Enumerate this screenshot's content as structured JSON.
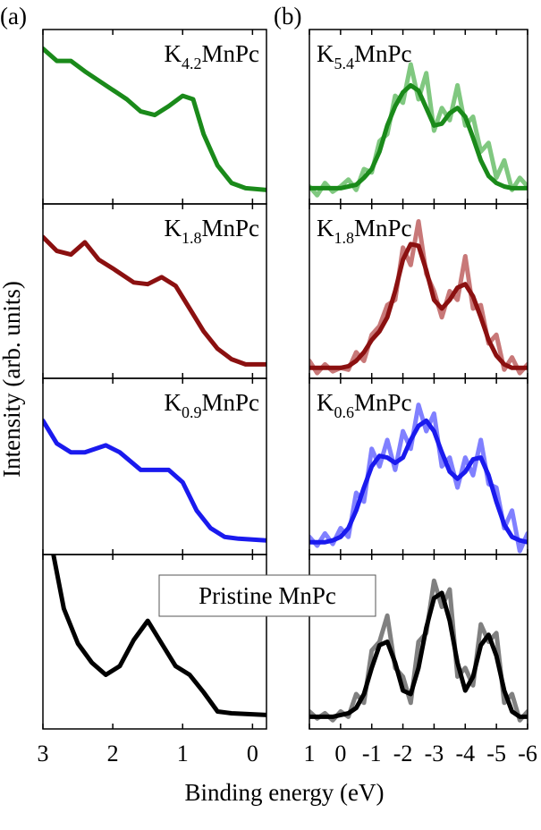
{
  "figure": {
    "panel_a": "(a)",
    "panel_b": "(b)",
    "y_label": "Intensity (arb. units)",
    "x_label": "Binding energy (eV)",
    "box_label": "Pristine MnPc"
  },
  "chart_data": [
    {
      "type": "line",
      "label": {
        "main": "K",
        "sub": "4.2",
        "rest": "MnPc"
      },
      "xlim": [
        3,
        -0.2
      ],
      "ylim": [
        0,
        1
      ],
      "xticks": [
        3,
        2,
        1,
        0
      ],
      "x": [
        3,
        2.8,
        2.6,
        2.4,
        2.1,
        1.8,
        1.6,
        1.4,
        1.2,
        1.0,
        0.85,
        0.7,
        0.5,
        0.3,
        0.1,
        -0.2
      ],
      "series": [
        {
          "color": "#1a8a1a",
          "values": [
            0.89,
            0.82,
            0.82,
            0.76,
            0.68,
            0.6,
            0.53,
            0.51,
            0.56,
            0.62,
            0.6,
            0.4,
            0.22,
            0.12,
            0.09,
            0.08
          ]
        }
      ]
    },
    {
      "type": "line",
      "label": {
        "main": "K",
        "sub": "1.8",
        "rest": "MnPc"
      },
      "xlim": [
        3,
        -0.2
      ],
      "ylim": [
        0,
        1
      ],
      "xticks": [
        3,
        2,
        1,
        0
      ],
      "x": [
        3,
        2.8,
        2.6,
        2.4,
        2.2,
        2.0,
        1.7,
        1.5,
        1.3,
        1.1,
        0.9,
        0.7,
        0.5,
        0.3,
        0.1,
        -0.2
      ],
      "series": [
        {
          "color": "#8b1010",
          "values": [
            0.81,
            0.73,
            0.71,
            0.78,
            0.68,
            0.63,
            0.55,
            0.54,
            0.58,
            0.53,
            0.4,
            0.27,
            0.17,
            0.11,
            0.08,
            0.08
          ]
        }
      ]
    },
    {
      "type": "line",
      "label": {
        "main": "K",
        "sub": "0.9",
        "rest": "MnPc"
      },
      "xlim": [
        3,
        -0.2
      ],
      "ylim": [
        0,
        1
      ],
      "xticks": [
        3,
        2,
        1,
        0
      ],
      "x": [
        3,
        2.8,
        2.6,
        2.4,
        2.1,
        1.9,
        1.6,
        1.4,
        1.2,
        1.0,
        0.8,
        0.6,
        0.4,
        0.2,
        -0.2
      ],
      "series": [
        {
          "color": "#1a1aee",
          "values": [
            0.76,
            0.63,
            0.58,
            0.58,
            0.62,
            0.58,
            0.48,
            0.48,
            0.48,
            0.41,
            0.25,
            0.15,
            0.1,
            0.09,
            0.08
          ]
        }
      ]
    },
    {
      "type": "line",
      "xlim": [
        3,
        -0.2
      ],
      "ylim": [
        0,
        1
      ],
      "xticks": [
        3,
        2,
        1,
        0
      ],
      "x": [
        2.85,
        2.7,
        2.5,
        2.3,
        2.1,
        1.9,
        1.7,
        1.5,
        1.3,
        1.1,
        0.9,
        0.7,
        0.5,
        0.3,
        -0.2
      ],
      "series": [
        {
          "color": "#000000",
          "values": [
            1.0,
            0.69,
            0.49,
            0.38,
            0.31,
            0.36,
            0.51,
            0.62,
            0.49,
            0.36,
            0.31,
            0.21,
            0.1,
            0.09,
            0.08
          ]
        }
      ]
    },
    {
      "type": "line",
      "label": {
        "main": "K",
        "sub": "5.4",
        "rest": "MnPc"
      },
      "xlim": [
        1,
        -6
      ],
      "ylim": [
        0,
        1
      ],
      "xticks": [
        1,
        0,
        -1,
        -2,
        -3,
        -4,
        -5,
        -6
      ],
      "x": [
        1,
        0.75,
        0.5,
        0.25,
        0,
        -0.25,
        -0.5,
        -0.75,
        -1,
        -1.25,
        -1.5,
        -1.75,
        -2,
        -2.25,
        -2.5,
        -2.75,
        -3,
        -3.25,
        -3.5,
        -3.75,
        -4,
        -4.25,
        -4.5,
        -4.75,
        -5,
        -5.25,
        -5.5,
        -5.75,
        -6
      ],
      "series": [
        {
          "color": "#80c880",
          "values": [
            0.1,
            0.05,
            0.12,
            0.07,
            0.1,
            0.14,
            0.08,
            0.2,
            0.18,
            0.36,
            0.4,
            0.62,
            0.58,
            0.8,
            0.6,
            0.75,
            0.42,
            0.55,
            0.48,
            0.68,
            0.45,
            0.5,
            0.3,
            0.35,
            0.15,
            0.25,
            0.08,
            0.15,
            0.1
          ]
        },
        {
          "color": "#1a8a1a",
          "values": [
            0.09,
            0.09,
            0.09,
            0.09,
            0.09,
            0.1,
            0.11,
            0.15,
            0.2,
            0.3,
            0.45,
            0.56,
            0.64,
            0.68,
            0.65,
            0.55,
            0.45,
            0.46,
            0.52,
            0.55,
            0.5,
            0.38,
            0.25,
            0.16,
            0.12,
            0.1,
            0.09,
            0.09,
            0.09
          ]
        }
      ]
    },
    {
      "type": "line",
      "label": {
        "main": "K",
        "sub": "1.8",
        "rest": "MnPc"
      },
      "xlim": [
        1,
        -6
      ],
      "ylim": [
        0,
        1
      ],
      "xticks": [
        1,
        0,
        -1,
        -2,
        -3,
        -4,
        -5,
        -6
      ],
      "x": [
        1,
        0.75,
        0.5,
        0.25,
        0,
        -0.25,
        -0.5,
        -0.75,
        -1,
        -1.25,
        -1.5,
        -1.75,
        -2,
        -2.25,
        -2.5,
        -2.75,
        -3,
        -3.25,
        -3.5,
        -3.75,
        -4,
        -4.25,
        -4.5,
        -4.75,
        -5,
        -5.25,
        -5.5,
        -5.75,
        -6
      ],
      "series": [
        {
          "color": "#c87878",
          "values": [
            0.1,
            0.03,
            0.08,
            0.04,
            0.06,
            0.05,
            0.15,
            0.1,
            0.25,
            0.3,
            0.42,
            0.45,
            0.75,
            0.65,
            0.9,
            0.6,
            0.5,
            0.35,
            0.5,
            0.45,
            0.7,
            0.4,
            0.42,
            0.2,
            0.25,
            0.05,
            0.12,
            0.03,
            0.08
          ]
        },
        {
          "color": "#8b1010",
          "values": [
            0.06,
            0.06,
            0.06,
            0.06,
            0.06,
            0.07,
            0.1,
            0.15,
            0.22,
            0.27,
            0.35,
            0.5,
            0.68,
            0.77,
            0.76,
            0.62,
            0.45,
            0.4,
            0.45,
            0.52,
            0.54,
            0.47,
            0.35,
            0.22,
            0.13,
            0.08,
            0.06,
            0.06,
            0.06
          ]
        }
      ]
    },
    {
      "type": "line",
      "label": {
        "main": "K",
        "sub": "0.6",
        "rest": "MnPc"
      },
      "xlim": [
        1,
        -6
      ],
      "ylim": [
        0,
        1
      ],
      "xticks": [
        1,
        0,
        -1,
        -2,
        -3,
        -4,
        -5,
        -6
      ],
      "x": [
        1,
        0.75,
        0.5,
        0.25,
        0,
        -0.25,
        -0.5,
        -0.75,
        -1,
        -1.25,
        -1.5,
        -1.75,
        -2,
        -2.25,
        -2.5,
        -2.75,
        -3,
        -3.25,
        -3.5,
        -3.75,
        -4,
        -4.25,
        -4.5,
        -4.75,
        -5,
        -5.25,
        -5.5,
        -5.75,
        -6
      ],
      "series": [
        {
          "color": "#8080ff",
          "values": [
            0.1,
            0.05,
            0.12,
            0.06,
            0.15,
            0.1,
            0.35,
            0.3,
            0.6,
            0.5,
            0.65,
            0.48,
            0.7,
            0.6,
            0.85,
            0.7,
            0.8,
            0.5,
            0.55,
            0.38,
            0.55,
            0.45,
            0.65,
            0.4,
            0.38,
            0.15,
            0.25,
            0.02,
            0.12
          ]
        },
        {
          "color": "#1a1aee",
          "values": [
            0.07,
            0.07,
            0.07,
            0.08,
            0.1,
            0.15,
            0.25,
            0.38,
            0.5,
            0.56,
            0.55,
            0.52,
            0.55,
            0.65,
            0.73,
            0.76,
            0.7,
            0.58,
            0.47,
            0.43,
            0.47,
            0.54,
            0.55,
            0.45,
            0.3,
            0.17,
            0.1,
            0.08,
            0.07
          ]
        }
      ]
    },
    {
      "type": "line",
      "xlim": [
        1,
        -6
      ],
      "ylim": [
        0,
        1
      ],
      "xticks": [
        1,
        0,
        -1,
        -2,
        -3,
        -4,
        -5,
        -6
      ],
      "x": [
        1,
        0.75,
        0.5,
        0.25,
        0,
        -0.25,
        -0.5,
        -0.75,
        -1,
        -1.25,
        -1.5,
        -1.75,
        -2,
        -2.25,
        -2.5,
        -2.75,
        -3,
        -3.25,
        -3.5,
        -3.75,
        -4,
        -4.25,
        -4.5,
        -4.75,
        -5,
        -5.25,
        -5.5,
        -5.75,
        -6
      ],
      "series": [
        {
          "color": "#808080",
          "values": [
            0.1,
            0.06,
            0.09,
            0.05,
            0.1,
            0.07,
            0.2,
            0.15,
            0.45,
            0.5,
            0.65,
            0.35,
            0.3,
            0.15,
            0.5,
            0.55,
            0.85,
            0.7,
            0.8,
            0.3,
            0.35,
            0.25,
            0.6,
            0.5,
            0.55,
            0.15,
            0.2,
            0.05,
            0.1
          ]
        },
        {
          "color": "#000000",
          "values": [
            0.07,
            0.07,
            0.07,
            0.07,
            0.08,
            0.09,
            0.12,
            0.2,
            0.35,
            0.48,
            0.5,
            0.38,
            0.22,
            0.2,
            0.35,
            0.58,
            0.75,
            0.78,
            0.62,
            0.38,
            0.22,
            0.3,
            0.48,
            0.54,
            0.42,
            0.22,
            0.1,
            0.07,
            0.07
          ]
        }
      ]
    }
  ]
}
